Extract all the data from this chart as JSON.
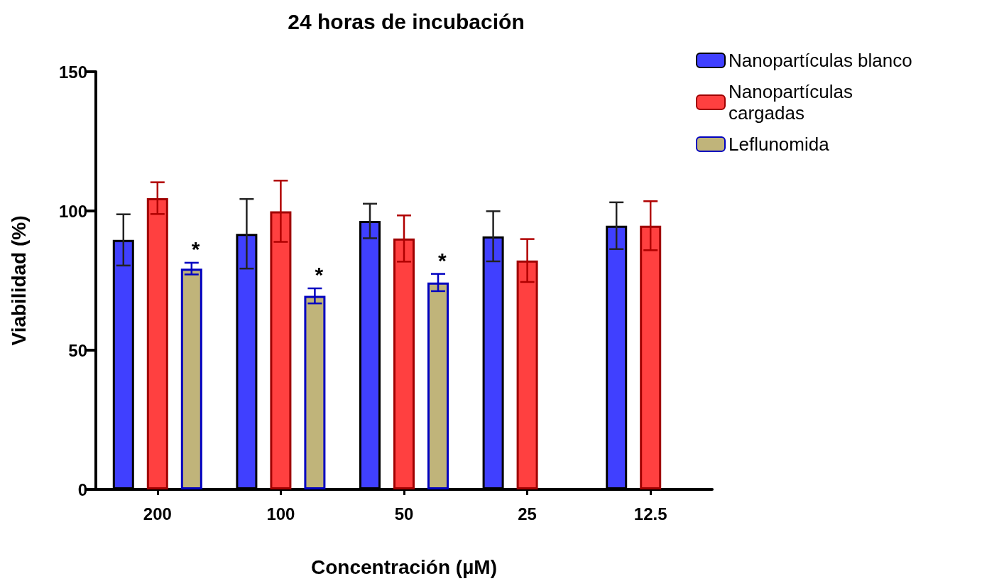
{
  "chart_data": {
    "type": "bar",
    "title": "24 horas de incubación",
    "xlabel": "Concentración (µM)",
    "ylabel": "Viabilidad (%)",
    "categories": [
      "200",
      "100",
      "50",
      "25",
      "12.5"
    ],
    "series": [
      {
        "name": "Nanopartículas blanco",
        "color": "#4040ff",
        "values": [
          89.6,
          91.8,
          96.4,
          90.9,
          94.7
        ],
        "errors": [
          9.2,
          12.5,
          6.2,
          9,
          8.4
        ]
      },
      {
        "name": "Nanopartículas cargadas",
        "color": "#ff4040",
        "values": [
          104.6,
          99.9,
          90.1,
          82.2,
          94.7
        ],
        "errors": [
          5.7,
          11,
          8.3,
          7.7,
          8.8
        ]
      },
      {
        "name": "Leflunomida",
        "color": "#c0b47a",
        "values": [
          79.3,
          69.5,
          74.3,
          null,
          null
        ],
        "errors": [
          2.1,
          2.7,
          3.1,
          null,
          null
        ],
        "value_labels": [
          "*",
          "*",
          "*",
          null,
          null
        ]
      }
    ],
    "ylim": [
      0,
      150
    ],
    "yticks": [
      0,
      50,
      100,
      150
    ],
    "grid": false,
    "legend": "top right"
  }
}
